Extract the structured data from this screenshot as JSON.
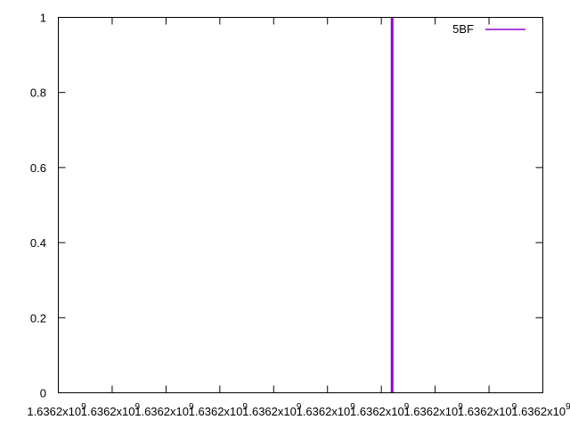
{
  "chart_data": {
    "type": "line",
    "title": "",
    "xlabel": "",
    "ylabel": "",
    "ylim": [
      0,
      1
    ],
    "y_ticks": [
      "0",
      "0.2",
      "0.4",
      "0.6",
      "0.8",
      "1"
    ],
    "x_ticks": [
      {
        "label": "1.6362x10",
        "exp": "9"
      },
      {
        "label": "1.6362x10",
        "exp": "9"
      },
      {
        "label": "1.6362x10",
        "exp": "9"
      },
      {
        "label": "1.6362x10",
        "exp": "9"
      },
      {
        "label": "1.6362x10",
        "exp": "9"
      },
      {
        "label": "1.6362x10",
        "exp": "9"
      },
      {
        "label": "1.6362x10",
        "exp": "9"
      },
      {
        "label": "1.6362x10",
        "exp": "9"
      },
      {
        "label": "1.6362x10",
        "exp": "9"
      },
      {
        "label": "1.6362x10",
        "exp": "9"
      }
    ],
    "grid": false,
    "legend_position": "top-right",
    "series": [
      {
        "name": "5BF",
        "color": "#9400d3",
        "x_tick_position": 6.2,
        "points": [
          [
            1636200000,
            0
          ],
          [
            1636200000,
            1
          ]
        ]
      }
    ]
  }
}
